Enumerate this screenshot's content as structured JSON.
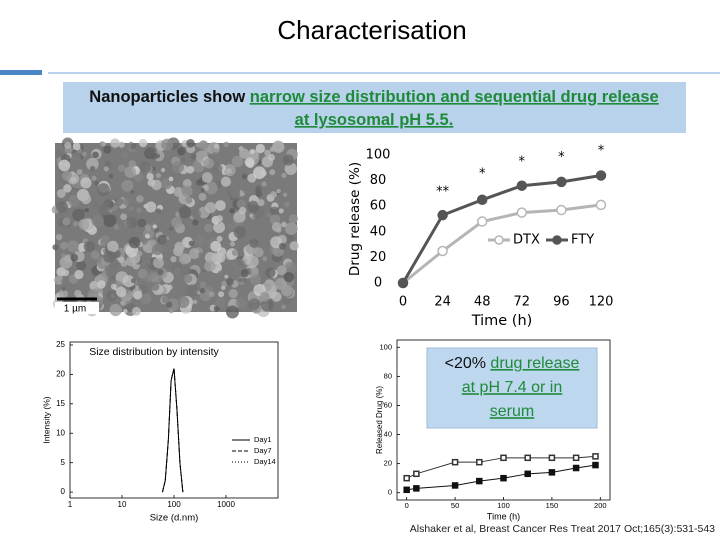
{
  "title": "Characterisation",
  "banner": {
    "line1": [
      "Nanoparticles show ",
      "narrow size distribution and sequential drug release"
    ],
    "line2": [
      "at lysosomal pH 5.5",
      "."
    ]
  },
  "image_label": "1 µm",
  "callout": {
    "line1": [
      "<20% ",
      "drug release"
    ],
    "line2": "at pH 7.4 or in",
    "line3": "serum"
  },
  "citation": "Alshaker et al, Breast Cancer Res Treat 2017 Oct;165(3):531-543",
  "chart_data": [
    {
      "type": "line",
      "ylabel": "Drug release (%)",
      "xlabel": "Time (h)",
      "x": [
        0,
        24,
        48,
        72,
        96,
        120
      ],
      "xlim": [
        0,
        120
      ],
      "xticks": [
        0,
        24,
        48,
        72,
        96,
        120
      ],
      "ylim": [
        0,
        100
      ],
      "yticks": [
        0,
        20,
        40,
        60,
        80,
        100
      ],
      "series": [
        {
          "name": "DTX",
          "color": "#b5b5b5",
          "marker": "circle",
          "filled": false,
          "values": [
            0,
            25,
            48,
            55,
            57,
            61
          ]
        },
        {
          "name": "FTY",
          "color": "#555555",
          "marker": "circle",
          "filled": true,
          "values": [
            0,
            53,
            65,
            76,
            79,
            84
          ]
        }
      ],
      "annotations": [
        {
          "x": 24,
          "y": 71,
          "label": "**"
        },
        {
          "x": 48,
          "y": 85,
          "label": "*"
        },
        {
          "x": 72,
          "y": 94.5,
          "label": "*"
        },
        {
          "x": 96,
          "y": 98,
          "label": "*"
        },
        {
          "x": 120,
          "y": 103,
          "label": "*"
        }
      ]
    },
    {
      "type": "line",
      "title": "Size distribution by intensity",
      "ylabel": "Intensity (%)",
      "xlabel": "Size (d.nm)",
      "log_x": true,
      "x": [
        60,
        68,
        78,
        88,
        100,
        114,
        130,
        148
      ],
      "xlim": [
        1,
        10000
      ],
      "xticks": [
        1,
        10,
        100,
        1000
      ],
      "ylim": [
        -1,
        25.5
      ],
      "yticks": [
        0,
        5,
        10,
        15,
        20,
        25
      ],
      "series": [
        {
          "name": "Day1",
          "color": "#000000",
          "dash": "solid",
          "values": [
            0,
            2,
            9,
            19,
            21,
            14,
            5,
            0
          ]
        },
        {
          "name": "Day7",
          "color": "#000000",
          "dash": "dashed",
          "values": [
            0,
            2,
            9,
            19,
            21,
            14,
            5,
            0
          ]
        },
        {
          "name": "Day14",
          "color": "#000000",
          "dash": "dotted",
          "values": [
            0,
            2,
            9,
            19,
            21,
            14,
            5,
            0
          ]
        }
      ]
    },
    {
      "type": "line",
      "ylabel": "Released Drug (%)",
      "xlabel": "Time (h)",
      "x": [
        0,
        10,
        50,
        75,
        100,
        125,
        150,
        175,
        195
      ],
      "xlim": [
        -10,
        210
      ],
      "xticks": [
        0,
        50,
        100,
        150,
        200
      ],
      "ylim": [
        -5,
        105
      ],
      "yticks": [
        0,
        20,
        40,
        60,
        80,
        100
      ],
      "series": [
        {
          "color": "#333333",
          "marker": "square",
          "filled": false,
          "values": [
            10,
            13,
            21,
            21,
            24,
            24,
            24,
            24,
            25
          ]
        },
        {
          "color": "#111111",
          "marker": "square",
          "filled": true,
          "values": [
            2,
            3,
            5,
            8,
            10,
            13,
            14,
            17,
            19
          ]
        }
      ]
    }
  ]
}
